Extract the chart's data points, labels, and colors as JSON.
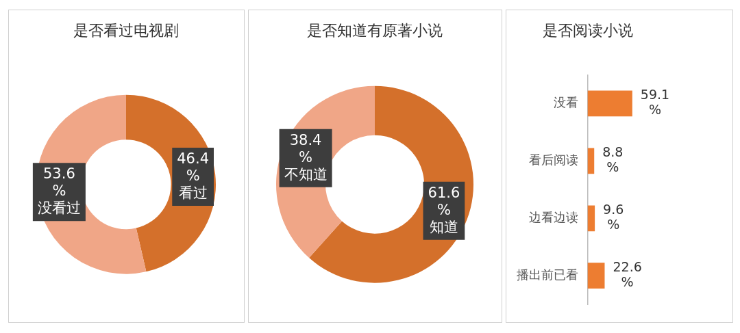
{
  "chart_data": [
    {
      "type": "donut",
      "title": "是否看过电视剧",
      "categories": [
        "看过",
        "没看过"
      ],
      "values": [
        46.4,
        53.6
      ],
      "colors": [
        "#d4702b",
        "#f0a687"
      ],
      "value_labels": [
        "46.4%",
        "53.6%"
      ],
      "legend": false
    },
    {
      "type": "donut",
      "title": "是否知道有原著小说",
      "categories": [
        "知道",
        "不知道"
      ],
      "values": [
        61.6,
        38.4
      ],
      "colors": [
        "#d4702b",
        "#f0a687"
      ],
      "value_labels": [
        "61.6%",
        "38.4%"
      ],
      "legend": false
    },
    {
      "type": "bar",
      "orientation": "horizontal",
      "title": "是否阅读小说",
      "categories": [
        "没看",
        "看后阅读",
        "边看边读",
        "播出前已看"
      ],
      "values": [
        59.1,
        8.8,
        9.6,
        22.6
      ],
      "color": "#ed7d31",
      "value_labels": [
        "59.1%",
        "8.8%",
        "9.6%",
        "22.6%"
      ],
      "legend": false
    }
  ]
}
